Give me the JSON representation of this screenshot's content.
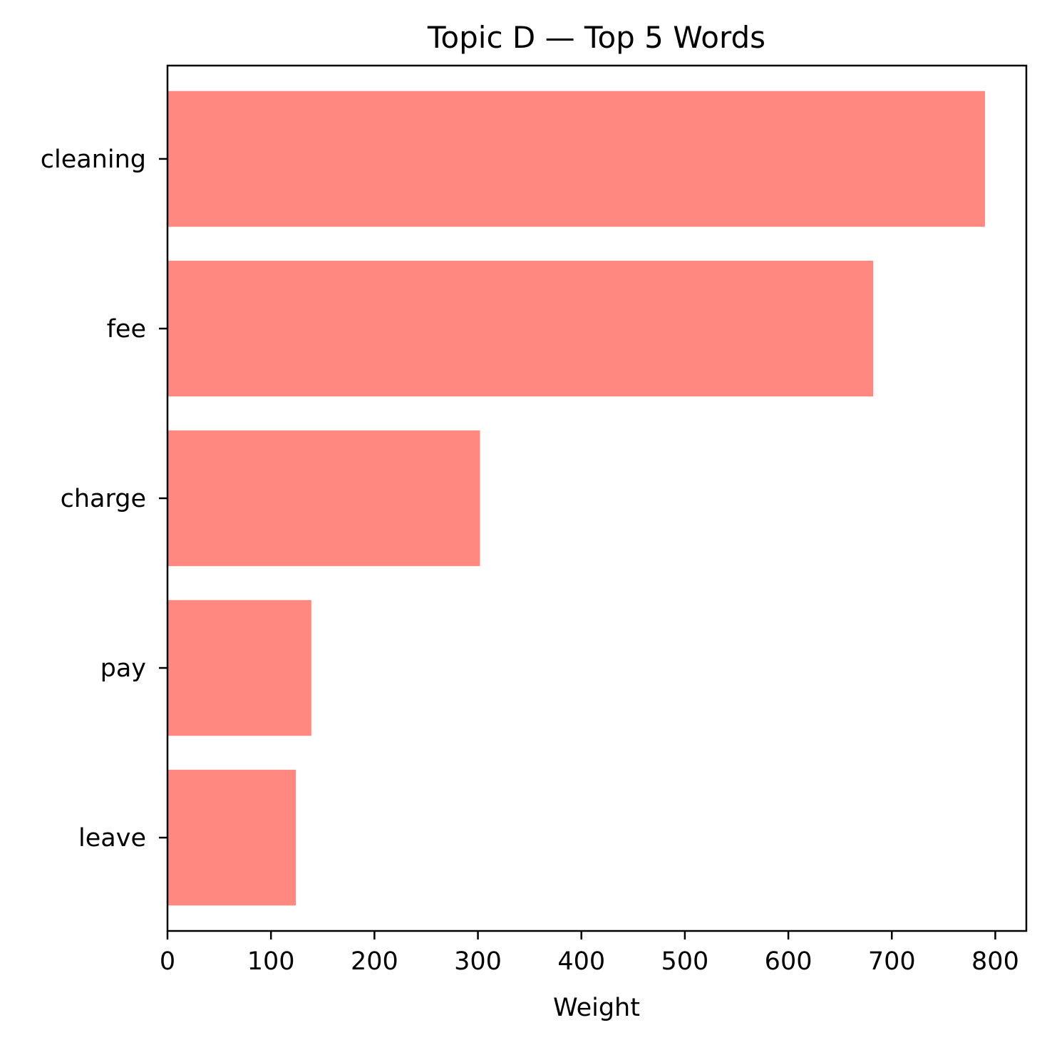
{
  "chart_data": {
    "type": "bar",
    "orientation": "horizontal",
    "title": "Topic D — Top 5 Words",
    "xlabel": "Weight",
    "ylabel": "",
    "categories": [
      "cleaning",
      "fee",
      "charge",
      "pay",
      "leave"
    ],
    "values": [
      790,
      682,
      302,
      139,
      124
    ],
    "xlim": [
      0,
      830
    ],
    "xticks": [
      0,
      100,
      200,
      300,
      400,
      500,
      600,
      700,
      800
    ],
    "grid": false,
    "legend": "none",
    "bar_color": "#ff8981"
  }
}
